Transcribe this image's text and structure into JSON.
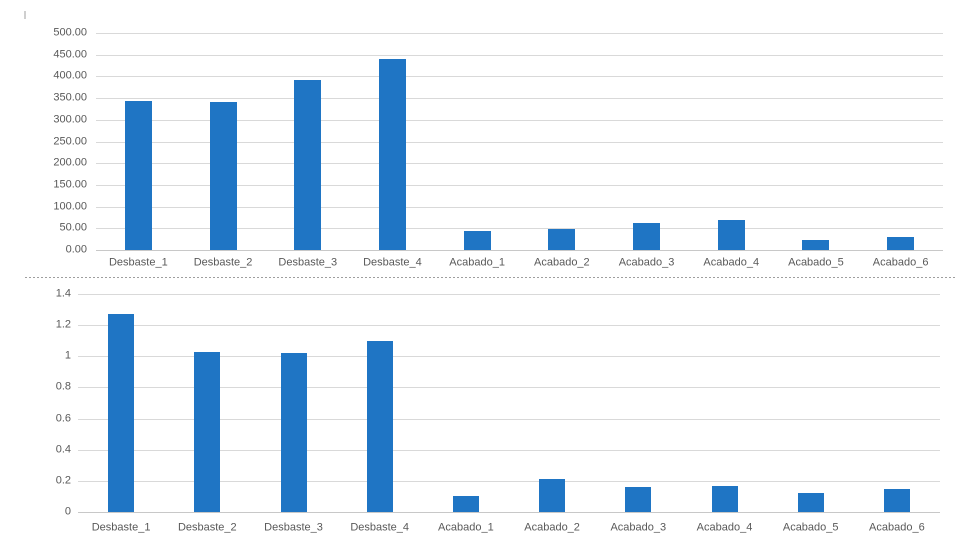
{
  "chart_data": [
    {
      "type": "bar",
      "title": "",
      "categories": [
        "Desbaste_1",
        "Desbaste_2",
        "Desbaste_3",
        "Desbaste_4",
        "Acabado_1",
        "Acabado_2",
        "Acabado_3",
        "Acabado_4",
        "Acabado_5",
        "Acabado_6"
      ],
      "values": [
        344,
        341,
        392,
        439,
        43,
        48,
        62,
        68,
        23,
        30
      ],
      "xlabel": "",
      "ylabel": "",
      "ylim": [
        0,
        500
      ],
      "ytick_step": 50,
      "ytick_labels": [
        "500.00",
        "450.00",
        "400.00",
        "350.00",
        "300.00",
        "250.00",
        "200.00",
        "150.00",
        "100.00",
        "50.00",
        "0.00"
      ],
      "grid": true,
      "legend": false,
      "bar_color": "#1f75c4"
    },
    {
      "type": "bar",
      "title": "",
      "categories": [
        "Desbaste_1",
        "Desbaste_2",
        "Desbaste_3",
        "Desbaste_4",
        "Acabado_1",
        "Acabado_2",
        "Acabado_3",
        "Acabado_4",
        "Acabado_5",
        "Acabado_6"
      ],
      "values": [
        1.27,
        1.03,
        1.02,
        1.1,
        0.1,
        0.21,
        0.16,
        0.17,
        0.12,
        0.15
      ],
      "xlabel": "",
      "ylabel": "",
      "ylim": [
        0,
        1.4
      ],
      "ytick_step": 0.2,
      "ytick_labels": [
        "1.4",
        "1.2",
        "1",
        "0.8",
        "0.6",
        "0.4",
        "0.2",
        "0"
      ],
      "grid": true,
      "legend": false,
      "bar_color": "#1f75c4"
    }
  ],
  "colors": {
    "bar": "#1f75c4",
    "gridline": "#d9d9d9",
    "baseline": "#c8c8c8",
    "tick_text": "#595959",
    "separator": "#9e9e9e",
    "background": "#ffffff"
  }
}
